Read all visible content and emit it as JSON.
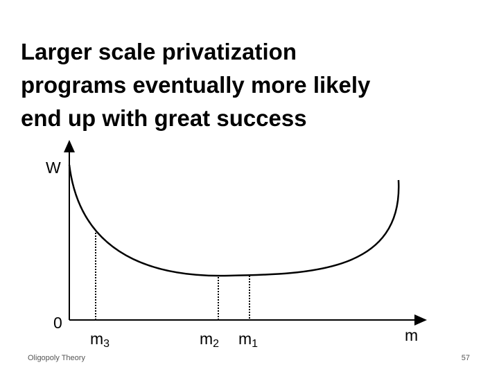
{
  "slide": {
    "title_lines": [
      "Larger scale privatization",
      "programs eventually more likely",
      "end up with great success"
    ],
    "y_axis_label": "W",
    "origin_label": "0",
    "x_axis_label": "m",
    "points": [
      {
        "base": "m",
        "sub": "3"
      },
      {
        "base": "m",
        "sub": "2"
      },
      {
        "base": "m",
        "sub": "1"
      }
    ],
    "footer": "Oligopoly Theory",
    "page_number": "57"
  }
}
